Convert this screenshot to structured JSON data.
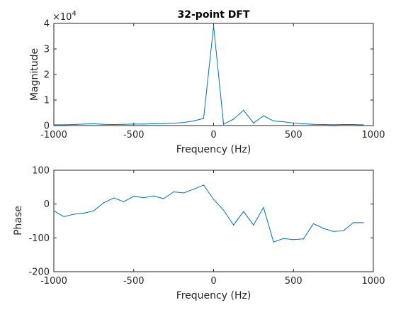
{
  "chart_data": [
    {
      "type": "line",
      "title": "32-point DFT",
      "xlabel": "Frequency (Hz)",
      "ylabel": "Magnitude",
      "exponent_label": "×10",
      "exponent_power": "4",
      "xlim": [
        -1000,
        1000
      ],
      "ylim": [
        0,
        40000
      ],
      "x_ticks": [
        -1000,
        -500,
        0,
        500,
        1000
      ],
      "y_ticks": [
        0,
        10000,
        20000,
        30000,
        40000
      ],
      "x_tick_labels": [
        "-1000",
        "-500",
        "0",
        "500",
        "1000"
      ],
      "y_tick_labels": [
        "0",
        "1",
        "2",
        "3",
        "4"
      ],
      "color": "#0072BD",
      "series": [
        {
          "x": [
            -1000,
            -937.5,
            -875,
            -812.5,
            -750,
            -687.5,
            -625,
            -562.5,
            -500,
            -437.5,
            -375,
            -312.5,
            -250,
            -187.5,
            -125,
            -62.5,
            0,
            62.5,
            125,
            187.5,
            250,
            312.5,
            375,
            437.5,
            500,
            562.5,
            625,
            687.5,
            750,
            812.5,
            875,
            937.5
          ],
          "y": [
            300,
            300,
            400,
            600,
            700,
            500,
            400,
            500,
            600,
            600,
            700,
            800,
            900,
            1200,
            1800,
            2800,
            39000,
            500,
            2500,
            6000,
            1000,
            3800,
            1800,
            1500,
            1000,
            700,
            500,
            400,
            300,
            400,
            400,
            300
          ]
        }
      ]
    },
    {
      "type": "line",
      "title": "",
      "xlabel": "Frequency (Hz)",
      "ylabel": "Phase",
      "xlim": [
        -1000,
        1000
      ],
      "ylim": [
        -200,
        100
      ],
      "x_ticks": [
        -1000,
        -500,
        0,
        500,
        1000
      ],
      "y_ticks": [
        -200,
        -100,
        0,
        100
      ],
      "x_tick_labels": [
        "-1000",
        "-500",
        "0",
        "500",
        "1000"
      ],
      "y_tick_labels": [
        "-200",
        "-100",
        "0",
        "100"
      ],
      "color": "#0072BD",
      "series": [
        {
          "x": [
            -1000,
            -937.5,
            -875,
            -812.5,
            -750,
            -687.5,
            -625,
            -562.5,
            -500,
            -437.5,
            -375,
            -312.5,
            -250,
            -187.5,
            -125,
            -62.5,
            0,
            62.5,
            125,
            187.5,
            250,
            312.5,
            375,
            437.5,
            500,
            562.5,
            625,
            687.5,
            750,
            812.5,
            875,
            937.5
          ],
          "y": [
            -20,
            -37,
            -30,
            -27,
            -20,
            4,
            18,
            7,
            23,
            19,
            24,
            16,
            36,
            33,
            44,
            56,
            14,
            -18,
            -62,
            -22,
            -62,
            -10,
            -112,
            -102,
            -105,
            -103,
            -58,
            -72,
            -81,
            -79,
            -55,
            -55
          ]
        }
      ]
    }
  ]
}
